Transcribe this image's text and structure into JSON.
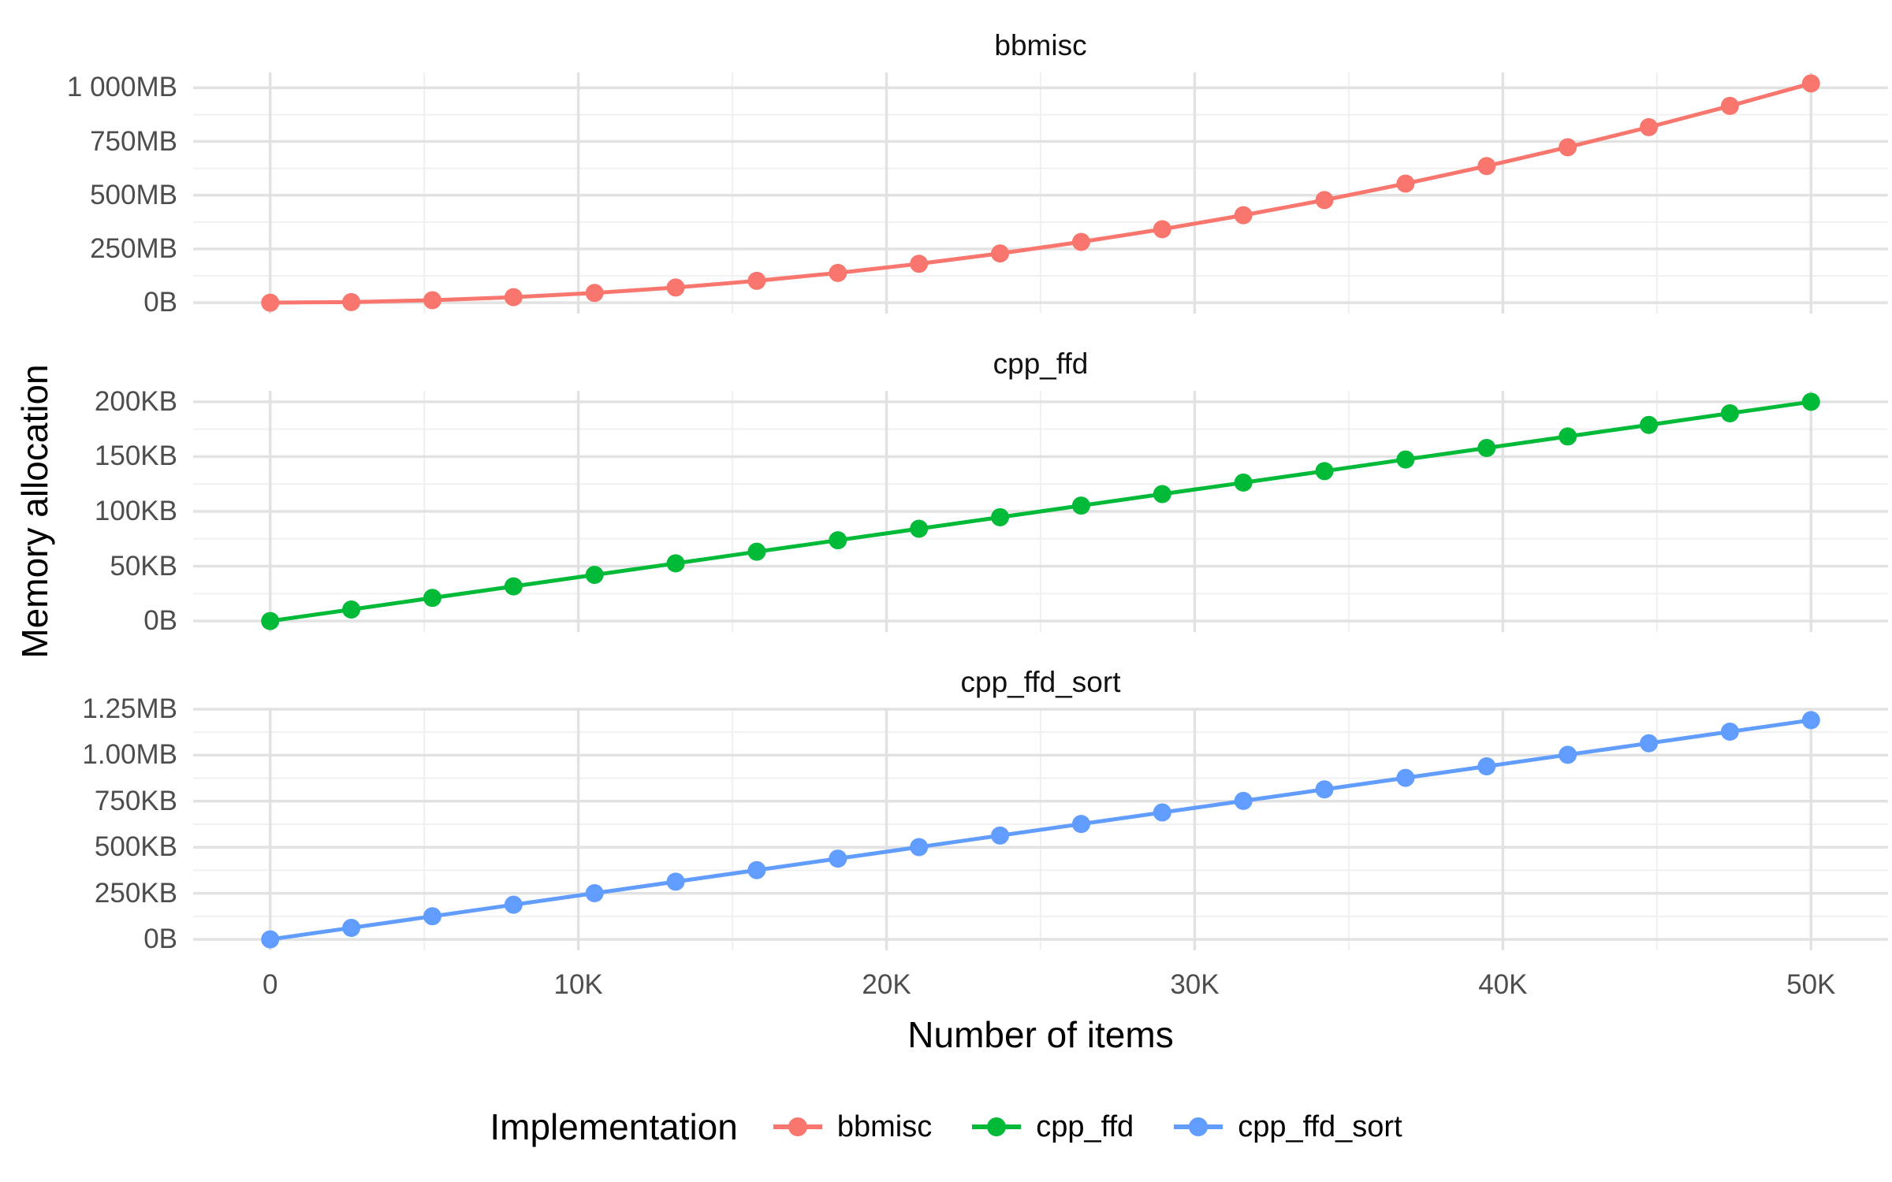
{
  "chart_data": {
    "type": "line",
    "ylabel": "Memory allocation",
    "xlabel": "Number of items",
    "x": [
      0,
      2632,
      5263,
      7895,
      10526,
      13158,
      15789,
      18421,
      21053,
      23684,
      26316,
      28947,
      31579,
      34211,
      36842,
      39474,
      42105,
      44737,
      47368,
      50000
    ],
    "x_axis": {
      "range": [
        0,
        50000
      ],
      "tick_values": [
        0,
        10000,
        20000,
        30000,
        40000,
        50000
      ],
      "tick_labels": [
        "0",
        "10K",
        "20K",
        "30K",
        "40K",
        "50K"
      ],
      "minor_values": [
        5000,
        15000,
        25000,
        35000,
        45000
      ],
      "expansion": 0.05
    },
    "grid": {
      "major_color": "#e2e2e2",
      "minor_color": "#f0f0f0",
      "shown": true
    },
    "facets": [
      {
        "title": "bbmisc",
        "color": "#F8766D",
        "unit": "MB",
        "y_range": [
          0,
          1020
        ],
        "y_ticks": {
          "values": [
            0,
            250,
            500,
            750,
            1000
          ],
          "labels": [
            "0B",
            "250MB",
            "500MB",
            "750MB",
            "1 000MB"
          ],
          "minor": [
            125,
            375,
            625,
            875
          ]
        },
        "values": [
          0,
          2.8,
          11.3,
          25.4,
          45.2,
          70.6,
          101.7,
          138.4,
          180.8,
          228.9,
          282.6,
          341.9,
          406.9,
          477.5,
          553.8,
          635.7,
          723.3,
          816.6,
          915.4,
          1020
        ]
      },
      {
        "title": "cpp_ffd",
        "color": "#00BA38",
        "unit": "KB",
        "y_range": [
          0,
          200
        ],
        "y_ticks": {
          "values": [
            0,
            50,
            100,
            150,
            200
          ],
          "labels": [
            "0B",
            "50KB",
            "100KB",
            "150KB",
            "200KB"
          ],
          "minor": [
            25,
            75,
            125,
            175
          ]
        },
        "values": [
          0,
          10.5,
          21.1,
          31.6,
          42.1,
          52.6,
          63.2,
          73.7,
          84.2,
          94.7,
          105.3,
          115.8,
          126.3,
          136.8,
          147.4,
          157.9,
          168.4,
          178.9,
          189.5,
          200
        ]
      },
      {
        "title": "cpp_ffd_sort",
        "color": "#619CFF",
        "unit": "KB",
        "y_range": [
          0,
          1190
        ],
        "y_ticks": {
          "values": [
            0,
            250,
            500,
            750,
            1000,
            1250
          ],
          "labels": [
            "0B",
            "250KB",
            "500KB",
            "750KB",
            "1.00MB",
            "1.25MB"
          ],
          "minor": [
            125,
            375,
            625,
            875,
            1125
          ]
        },
        "values": [
          0,
          62.6,
          125.3,
          187.9,
          250.5,
          313.2,
          375.8,
          438.4,
          501.1,
          563.7,
          626.3,
          688.9,
          751.6,
          814.2,
          876.8,
          939.5,
          1002.1,
          1064.7,
          1127.4,
          1190
        ]
      }
    ],
    "legend": {
      "title": "Implementation",
      "position": "bottom",
      "entries": [
        {
          "label": "bbmisc",
          "color": "#F8766D"
        },
        {
          "label": "cpp_ffd",
          "color": "#00BA38"
        },
        {
          "label": "cpp_ffd_sort",
          "color": "#619CFF"
        }
      ]
    }
  }
}
